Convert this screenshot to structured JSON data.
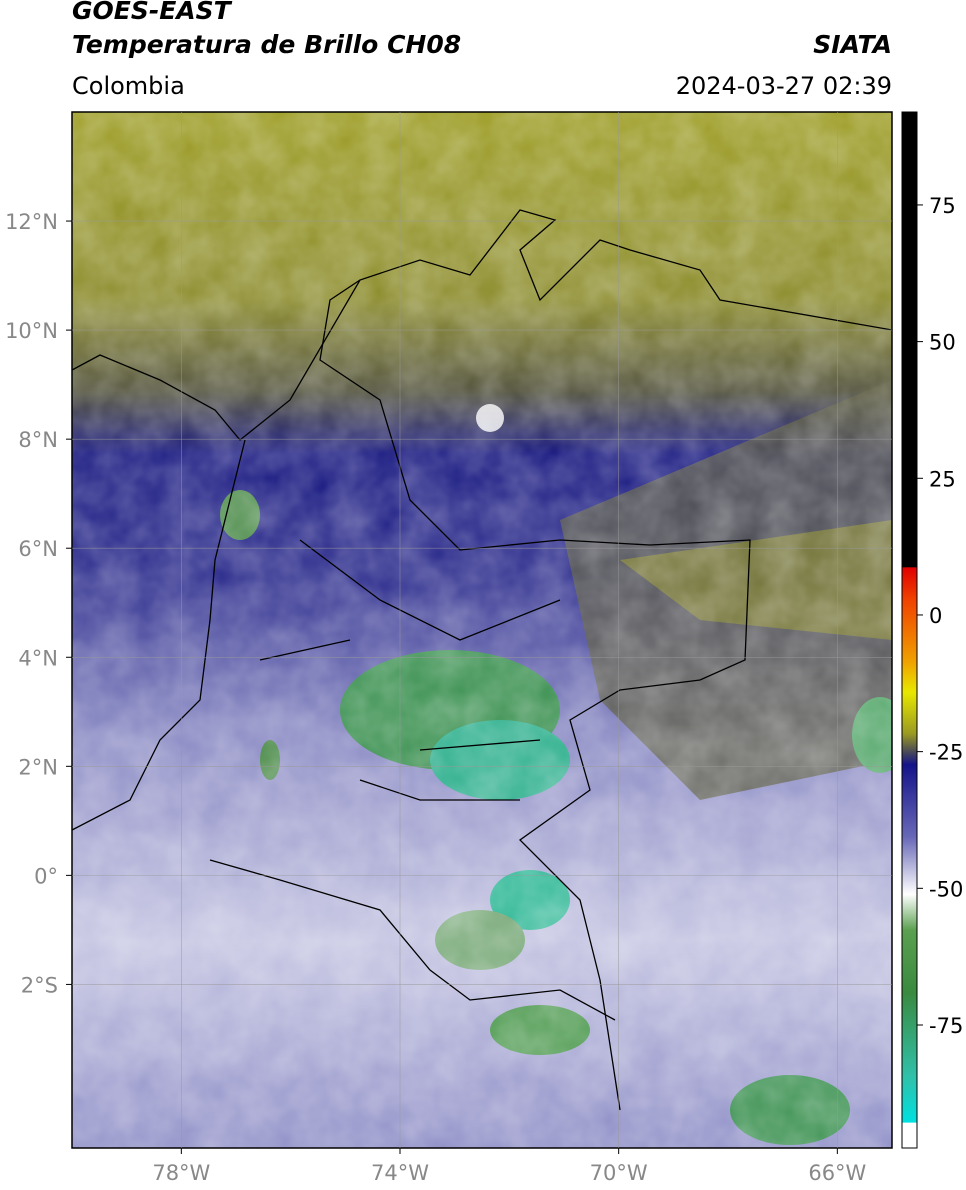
{
  "header": {
    "title": "GOES-EAST",
    "subtitle": "Temperatura de Brillo CH08",
    "region": "Colombia",
    "source": "SIATA",
    "datetime": "2024-03-27 02:39"
  },
  "map": {
    "lonlim": [
      -80,
      -65
    ],
    "latlim": [
      -5,
      14
    ],
    "xticks": [
      {
        "value": -78,
        "label": "78°W"
      },
      {
        "value": -74,
        "label": "74°W"
      },
      {
        "value": -70,
        "label": "70°W"
      },
      {
        "value": -66,
        "label": "66°W"
      }
    ],
    "yticks": [
      {
        "value": 12,
        "label": "12°N"
      },
      {
        "value": 10,
        "label": "10°N"
      },
      {
        "value": 8,
        "label": "8°N"
      },
      {
        "value": 6,
        "label": "6°N"
      },
      {
        "value": 4,
        "label": "4°N"
      },
      {
        "value": 2,
        "label": "2°N"
      },
      {
        "value": 0,
        "label": "0°"
      },
      {
        "value": -2,
        "label": "2°S"
      }
    ]
  },
  "colorbar": {
    "lim": [
      -97.5,
      92
    ],
    "ticks": [
      75,
      50,
      25,
      0,
      -25,
      -50,
      -75
    ]
  }
}
